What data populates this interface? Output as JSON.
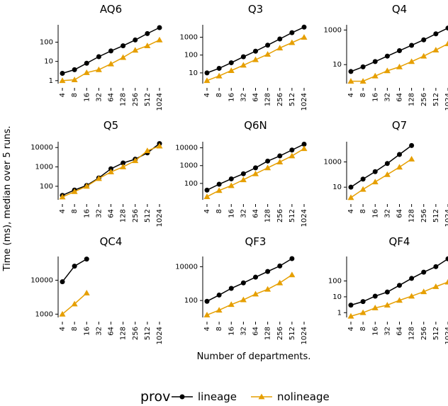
{
  "chart_data": [
    {
      "type": "line",
      "title": "AQ6",
      "log_y": true,
      "categories": [
        "4",
        "8",
        "16",
        "32",
        "64",
        "128",
        "256",
        "512",
        "1024"
      ],
      "ylim": [
        0.7,
        800
      ],
      "yticks": [
        1,
        10,
        100
      ],
      "series": [
        {
          "name": "lineage",
          "color": "#000000",
          "marker": "circle",
          "values": [
            2.4,
            3.7,
            8,
            17.6,
            35,
            65,
            130,
            280,
            570
          ]
        },
        {
          "name": "nolineage",
          "color": "#e69f00",
          "marker": "triangle",
          "values": [
            1,
            1.1,
            2.6,
            3.7,
            7.4,
            16,
            38,
            65,
            130
          ]
        }
      ]
    },
    {
      "type": "line",
      "title": "Q3",
      "log_y": true,
      "categories": [
        "4",
        "8",
        "16",
        "32",
        "64",
        "128",
        "256",
        "512",
        "1024"
      ],
      "ylim": [
        2.5,
        5000
      ],
      "yticks": [
        10,
        100,
        1000
      ],
      "series": [
        {
          "name": "lineage",
          "color": "#000000",
          "marker": "circle",
          "values": [
            10,
            18,
            37,
            80,
            165,
            360,
            800,
            1800,
            3700
          ]
        },
        {
          "name": "nolineage",
          "color": "#e69f00",
          "marker": "triangle",
          "values": [
            3.7,
            6.7,
            13.5,
            27,
            55,
            110,
            250,
            500,
            1000
          ]
        }
      ]
    },
    {
      "type": "line",
      "title": "Q4",
      "log_y": true,
      "categories": [
        "4",
        "8",
        "16",
        "32",
        "64",
        "128",
        "256",
        "512",
        "1024"
      ],
      "ylim": [
        0.8,
        2000
      ],
      "yticks": [
        10,
        1000
      ],
      "series": [
        {
          "name": "lineage",
          "color": "#000000",
          "marker": "circle",
          "values": [
            4,
            7.4,
            15,
            31,
            64,
            130,
            270,
            600,
            1300
          ]
        },
        {
          "name": "nolineage",
          "color": "#e69f00",
          "marker": "triangle",
          "values": [
            1.1,
            1.1,
            2.2,
            4.4,
            7.4,
            15,
            31,
            70,
            160
          ]
        }
      ]
    },
    {
      "type": "line",
      "title": "Q5",
      "log_y": true,
      "categories": [
        "4",
        "8",
        "16",
        "32",
        "64",
        "128",
        "256",
        "512",
        "1024"
      ],
      "ylim": [
        20,
        20000
      ],
      "yticks": [
        100,
        1000,
        10000
      ],
      "series": [
        {
          "name": "lineage",
          "color": "#000000",
          "marker": "circle",
          "values": [
            34,
            64,
            110,
            270,
            800,
            1600,
            2500,
            5300,
            16000
          ]
        },
        {
          "name": "nolineage",
          "color": "#e69f00",
          "marker": "triangle",
          "values": [
            28,
            53,
            100,
            250,
            550,
            1000,
            2100,
            6800,
            12000
          ]
        }
      ]
    },
    {
      "type": "line",
      "title": "Q6N",
      "log_y": true,
      "categories": [
        "4",
        "8",
        "16",
        "32",
        "64",
        "128",
        "256",
        "512",
        "1024"
      ],
      "ylim": [
        12,
        22000
      ],
      "yticks": [
        100,
        1000,
        10000
      ],
      "series": [
        {
          "name": "lineage",
          "color": "#000000",
          "marker": "circle",
          "values": [
            42,
            90,
            180,
            350,
            750,
            1800,
            3500,
            7500,
            16000
          ]
        },
        {
          "name": "nolineage",
          "color": "#e69f00",
          "marker": "triangle",
          "values": [
            18,
            40,
            75,
            160,
            350,
            750,
            1600,
            3500,
            9000
          ]
        }
      ]
    },
    {
      "type": "line",
      "title": "Q7",
      "log_y": true,
      "categories": [
        "4",
        "8",
        "16",
        "32",
        "64",
        "128",
        "256",
        "512",
        "1024"
      ],
      "ylim": [
        1,
        40000
      ],
      "yticks": [
        10,
        1000
      ],
      "series": [
        {
          "name": "lineage",
          "color": "#000000",
          "marker": "circle",
          "values": [
            10,
            44,
            170,
            750,
            3900,
            20000,
            null,
            null,
            null
          ]
        },
        {
          "name": "nolineage",
          "color": "#e69f00",
          "marker": "triangle",
          "values": [
            1.5,
            6.7,
            26,
            100,
            390,
            1700,
            null,
            null,
            null
          ]
        }
      ]
    },
    {
      "type": "line",
      "title": "QC4",
      "log_y": true,
      "categories": [
        "4",
        "8",
        "16",
        "32",
        "64",
        "128",
        "256",
        "512",
        "1024"
      ],
      "ylim": [
        800,
        50000
      ],
      "yticks": [
        1000,
        10000
      ],
      "series": [
        {
          "name": "lineage",
          "color": "#000000",
          "marker": "circle",
          "values": [
            9000,
            26000,
            42000,
            null,
            null,
            null,
            null,
            null,
            null
          ]
        },
        {
          "name": "nolineage",
          "color": "#e69f00",
          "marker": "triangle",
          "values": [
            1000,
            2000,
            4200,
            null,
            null,
            null,
            null,
            null,
            null
          ]
        }
      ]
    },
    {
      "type": "line",
      "title": "QF3",
      "log_y": true,
      "categories": [
        "4",
        "8",
        "16",
        "32",
        "64",
        "128",
        "256",
        "512",
        "1024"
      ],
      "ylim": [
        10,
        40000
      ],
      "yticks": [
        100,
        10000
      ],
      "series": [
        {
          "name": "lineage",
          "color": "#000000",
          "marker": "circle",
          "values": [
            90,
            210,
            520,
            1100,
            2400,
            5200,
            11000,
            30000,
            null
          ]
        },
        {
          "name": "nolineage",
          "color": "#e69f00",
          "marker": "triangle",
          "values": [
            14,
            27,
            58,
            110,
            240,
            460,
            1100,
            3300,
            null
          ]
        }
      ]
    },
    {
      "type": "line",
      "title": "QF4",
      "log_y": true,
      "categories": [
        "4",
        "8",
        "16",
        "32",
        "64",
        "128",
        "256",
        "512",
        "1024"
      ],
      "ylim": [
        0.5,
        3500
      ],
      "yticks": [
        1,
        10,
        100
      ],
      "series": [
        {
          "name": "lineage",
          "color": "#000000",
          "marker": "circle",
          "values": [
            3,
            5,
            11,
            20,
            53,
            145,
            360,
            800,
            2500
          ]
        },
        {
          "name": "nolineage",
          "color": "#e69f00",
          "marker": "triangle",
          "values": [
            0.6,
            1,
            2,
            3,
            6,
            11,
            21,
            44,
            85
          ]
        }
      ]
    }
  ],
  "ylabel": "Time (ms), median over 5 runs.",
  "xlabel": "Number of departments.",
  "legend_title": "prov"
}
